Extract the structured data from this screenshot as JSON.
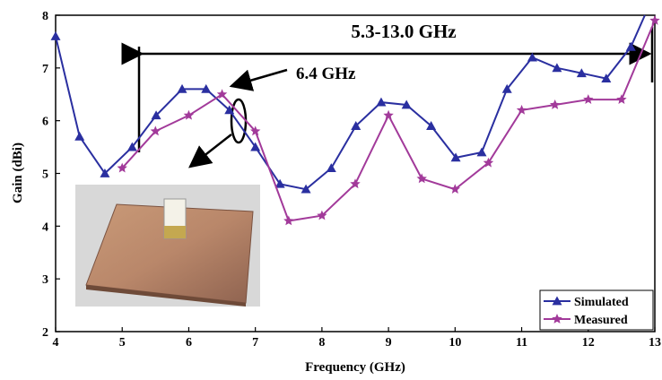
{
  "chart_data": {
    "type": "line",
    "x_label": "Frequency (GHz)",
    "y_label": "Gain (dBi)",
    "xlim": [
      4,
      13
    ],
    "ylim": [
      2,
      8
    ],
    "xticks": [
      4,
      5,
      6,
      7,
      8,
      9,
      10,
      11,
      12,
      13
    ],
    "yticks": [
      2,
      3,
      4,
      5,
      6,
      7,
      8
    ],
    "legend_position": "lower right",
    "annotations": [
      "5.3-13.0 GHz",
      "6.4 GHz"
    ],
    "series": [
      {
        "name": "Simulated",
        "color": "#2a2fa0",
        "marker": "triangle",
        "x": [
          4,
          4.36,
          4.74,
          5.15,
          5.51,
          5.9,
          6.26,
          6.61,
          7.0,
          7.37,
          7.76,
          8.14,
          8.51,
          8.89,
          9.27,
          9.64,
          10.01,
          10.4,
          10.78,
          11.16,
          11.53,
          11.9,
          12.27,
          12.64,
          12.85
        ],
        "values": [
          7.6,
          5.7,
          5.0,
          5.5,
          6.1,
          6.6,
          6.6,
          6.2,
          5.5,
          4.8,
          4.7,
          5.1,
          5.9,
          6.35,
          6.3,
          5.9,
          5.3,
          5.4,
          6.6,
          7.2,
          7.0,
          6.9,
          6.8,
          7.4,
          8.0
        ]
      },
      {
        "name": "Measured",
        "color": "#a23a9a",
        "marker": "star",
        "x": [
          5,
          5.5,
          6,
          6.5,
          7,
          7.5,
          8,
          8.5,
          9,
          9.5,
          10,
          10.5,
          11,
          11.5,
          12,
          12.5,
          13
        ],
        "values": [
          5.1,
          5.8,
          6.1,
          6.5,
          5.8,
          4.1,
          4.2,
          4.8,
          6.1,
          4.9,
          4.7,
          5.2,
          6.2,
          6.3,
          6.4,
          6.4,
          7.9
        ]
      }
    ]
  }
}
